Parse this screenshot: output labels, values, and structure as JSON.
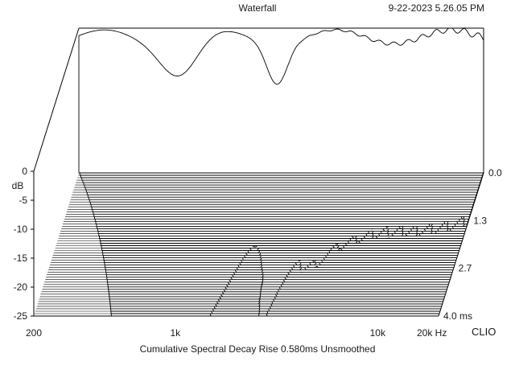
{
  "header": {
    "title": "Waterfall",
    "timestamp": "9-22-2023 5.26.05 PM"
  },
  "footer": {
    "caption": "Cumulative Spectral Decay    Rise 0.580ms    Unsmoothed",
    "brand": "CLIO"
  },
  "chart_data": {
    "type": "waterfall",
    "title": "Waterfall",
    "subtitle": "Cumulative Spectral Decay    Rise 0.580ms    Unsmoothed",
    "x_axis": {
      "label": "Hz",
      "scale": "log",
      "range": [
        200,
        20000
      ],
      "ticks": [
        "200",
        "1k",
        "10k",
        "20k Hz"
      ]
    },
    "y_axis": {
      "label": "dB",
      "range": [
        -25,
        0
      ],
      "ticks": [
        "0",
        "-5",
        "-10",
        "-15",
        "-20",
        "-25"
      ]
    },
    "z_axis": {
      "label": "ms",
      "range": [
        0,
        4.0
      ],
      "ticks": [
        "0.0",
        "1.3",
        "2.7",
        "4.0 ms"
      ]
    },
    "slices": 60,
    "grid": false,
    "line_color": "#000000",
    "fill_color": "#ffffff"
  }
}
